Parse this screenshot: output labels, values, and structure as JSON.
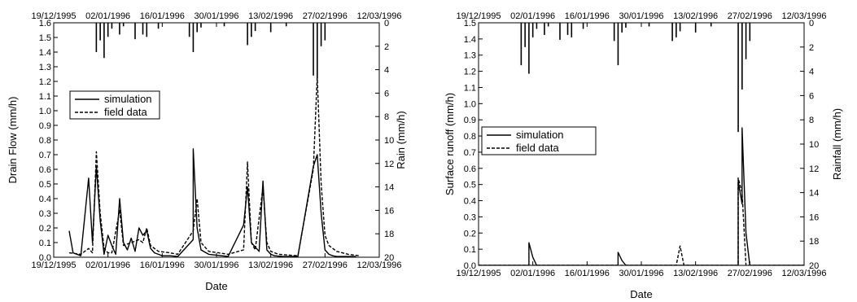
{
  "chart_data": [
    {
      "type": "line",
      "xlabel": "Date",
      "ylabel": "Drain Flow (mm/h)",
      "y2label": "Rain (mm/h)",
      "x_ticks": [
        "19/12/1995",
        "02/01/1996",
        "16/01/1996",
        "30/01/1996",
        "13/02/1996",
        "27/02/1996",
        "12/03/1996"
      ],
      "xlim": [
        "1995-12-19",
        "1996-03-12"
      ],
      "ylim": [
        0,
        1.6
      ],
      "y_ticks": [
        0.0,
        0.1,
        0.2,
        0.3,
        0.4,
        0.5,
        0.6,
        0.7,
        0.8,
        0.9,
        1.0,
        1.1,
        1.2,
        1.3,
        1.4,
        1.5,
        1.6
      ],
      "y2lim": [
        20,
        0
      ],
      "y2_ticks": [
        0,
        2,
        4,
        6,
        8,
        10,
        12,
        14,
        16,
        18,
        20
      ],
      "legend": {
        "position": "upper-left",
        "entries": [
          "simulation",
          "field data"
        ]
      },
      "series": [
        {
          "name": "simulation",
          "style": "solid",
          "x": [
            "1995-12-23",
            "1995-12-24",
            "1995-12-26",
            "1995-12-28",
            "1995-12-29",
            "1995-12-30",
            "1995-12-31",
            "1996-01-01",
            "1996-01-02",
            "1996-01-03",
            "1996-01-04",
            "1996-01-05",
            "1996-01-06",
            "1996-01-07",
            "1996-01-08",
            "1996-01-09",
            "1996-01-10",
            "1996-01-11",
            "1996-01-12",
            "1996-01-13",
            "1996-01-14",
            "1996-01-15",
            "1996-01-16",
            "1996-01-18",
            "1996-01-20",
            "1996-01-24",
            "1996-01-24",
            "1996-01-25",
            "1996-01-26",
            "1996-01-28",
            "1996-02-02",
            "1996-02-06",
            "1996-02-07",
            "1996-02-08",
            "1996-02-09",
            "1996-02-10",
            "1996-02-11",
            "1996-02-12",
            "1996-02-13",
            "1996-02-14",
            "1996-02-16",
            "1996-02-20",
            "1996-02-24",
            "1996-02-25",
            "1996-02-26",
            "1996-02-27",
            "1996-02-28",
            "1996-02-29",
            "1996-03-01",
            "1996-03-03",
            "1996-03-06"
          ],
          "y": [
            0.18,
            0.03,
            0.01,
            0.54,
            0.1,
            0.62,
            0.25,
            0.02,
            0.15,
            0.08,
            0.02,
            0.4,
            0.1,
            0.05,
            0.13,
            0.04,
            0.2,
            0.15,
            0.18,
            0.06,
            0.03,
            0.02,
            0.01,
            0.01,
            0.005,
            0.12,
            0.74,
            0.2,
            0.05,
            0.02,
            0.005,
            0.22,
            0.48,
            0.1,
            0.07,
            0.04,
            0.52,
            0.05,
            0.02,
            0.01,
            0.005,
            0.005,
            0.62,
            0.7,
            0.3,
            0.05,
            0.02,
            0.01,
            0.005,
            0.005,
            0.005
          ]
        },
        {
          "name": "field data",
          "style": "dashed",
          "x": [
            "1995-12-23",
            "1995-12-26",
            "1995-12-28",
            "1995-12-29",
            "1995-12-30",
            "1995-12-31",
            "1996-01-01",
            "1996-01-02",
            "1996-01-03",
            "1996-01-05",
            "1996-01-06",
            "1996-01-08",
            "1996-01-10",
            "1996-01-11",
            "1996-01-12",
            "1996-01-13",
            "1996-01-15",
            "1996-01-18",
            "1996-01-20",
            "1996-01-24",
            "1996-01-25",
            "1996-01-26",
            "1996-01-28",
            "1996-02-02",
            "1996-02-06",
            "1996-02-07",
            "1996-02-08",
            "1996-02-09",
            "1996-02-11",
            "1996-02-12",
            "1996-02-13",
            "1996-02-15",
            "1996-02-20",
            "1996-02-24",
            "1996-02-25",
            "1996-02-26",
            "1996-02-27",
            "1996-02-28",
            "1996-03-01",
            "1996-03-04",
            "1996-03-07"
          ],
          "y": [
            0.03,
            0.02,
            0.06,
            0.03,
            0.72,
            0.3,
            0.06,
            0.03,
            0.03,
            0.32,
            0.08,
            0.1,
            0.12,
            0.1,
            0.2,
            0.08,
            0.04,
            0.03,
            0.02,
            0.18,
            0.4,
            0.1,
            0.04,
            0.02,
            0.05,
            0.65,
            0.1,
            0.05,
            0.48,
            0.1,
            0.04,
            0.02,
            0.01,
            0.6,
            1.24,
            0.5,
            0.15,
            0.08,
            0.04,
            0.02,
            0.01
          ]
        },
        {
          "name": "rain",
          "style": "bars-from-top",
          "axis": "y2",
          "x": [
            "1995-12-30",
            "1995-12-31",
            "1996-01-01",
            "1996-01-02",
            "1996-01-03",
            "1996-01-05",
            "1996-01-06",
            "1996-01-09",
            "1996-01-11",
            "1996-01-12",
            "1996-01-15",
            "1996-01-23",
            "1996-01-24",
            "1996-01-25",
            "1996-01-26",
            "1996-02-01",
            "1996-02-07",
            "1996-02-08",
            "1996-02-09",
            "1996-02-13",
            "1996-02-17",
            "1996-02-24",
            "1996-02-25",
            "1996-02-26",
            "1996-02-27"
          ],
          "y": [
            2.5,
            1.5,
            3.0,
            1.2,
            0.5,
            1.0,
            0.3,
            1.4,
            1.0,
            1.2,
            0.5,
            1.2,
            2.5,
            0.8,
            0.4,
            0.3,
            1.9,
            1.2,
            0.7,
            0.8,
            0.3,
            4.5,
            4.7,
            2.0,
            1.5
          ]
        }
      ]
    },
    {
      "type": "line",
      "xlabel": "Date",
      "ylabel": "Surface runoff (mm/h)",
      "y2label": "Rainfall (mm/h)",
      "x_ticks": [
        "19/12/1995",
        "02/01/1996",
        "16/01/1996",
        "30/01/1996",
        "13/02/1996",
        "27/02/1996",
        "12/03/1996"
      ],
      "xlim": [
        "1995-12-19",
        "1996-03-12"
      ],
      "ylim": [
        0,
        1.5
      ],
      "y_ticks": [
        0.0,
        0.1,
        0.2,
        0.3,
        0.4,
        0.5,
        0.6,
        0.7,
        0.8,
        0.9,
        1.0,
        1.1,
        1.2,
        1.3,
        1.4,
        1.5
      ],
      "y2lim": [
        20,
        0
      ],
      "y2_ticks": [
        0,
        2,
        4,
        6,
        8,
        10,
        12,
        14,
        16,
        18,
        20
      ],
      "legend": {
        "position": "center-left",
        "entries": [
          "simulation",
          "field data"
        ]
      },
      "series": [
        {
          "name": "simulation",
          "style": "solid",
          "x": [
            "1995-12-19",
            "1995-12-30",
            "1996-01-01",
            "1996-01-01",
            "1996-01-02",
            "1996-01-03",
            "1996-01-24",
            "1996-01-24",
            "1996-01-25",
            "1996-01-26",
            "1996-02-24",
            "1996-02-24",
            "1996-02-25",
            "1996-02-25",
            "1996-02-26",
            "1996-02-27",
            "1996-03-12"
          ],
          "y": [
            0,
            0,
            0,
            0.14,
            0.05,
            0,
            0,
            0.08,
            0.03,
            0,
            0,
            0.52,
            0.38,
            0.85,
            0.2,
            0,
            0
          ]
        },
        {
          "name": "field data",
          "style": "dashed",
          "x": [
            "1995-12-19",
            "1996-02-08",
            "1996-02-09",
            "1996-02-10",
            "1996-02-24",
            "1996-02-24",
            "1996-02-25",
            "1996-02-26",
            "1996-03-12"
          ],
          "y": [
            0,
            0,
            0.12,
            0,
            0,
            0.54,
            0.45,
            0,
            0
          ]
        },
        {
          "name": "rainfall",
          "style": "bars-from-top",
          "axis": "y2",
          "x": [
            "1995-12-30",
            "1995-12-31",
            "1996-01-01",
            "1996-01-02",
            "1996-01-03",
            "1996-01-05",
            "1996-01-06",
            "1996-01-09",
            "1996-01-11",
            "1996-01-12",
            "1996-01-15",
            "1996-01-23",
            "1996-01-24",
            "1996-01-25",
            "1996-01-26",
            "1996-02-01",
            "1996-02-07",
            "1996-02-08",
            "1996-02-09",
            "1996-02-13",
            "1996-02-17",
            "1996-02-24",
            "1996-02-25",
            "1996-02-26",
            "1996-02-27"
          ],
          "y": [
            3.5,
            2.0,
            4.2,
            1.2,
            0.5,
            1.0,
            0.3,
            1.4,
            1.0,
            1.2,
            0.5,
            1.5,
            3.5,
            0.8,
            0.4,
            0.3,
            1.5,
            1.2,
            0.7,
            0.8,
            0.3,
            9.0,
            5.5,
            3.0,
            1.5
          ]
        }
      ]
    }
  ]
}
